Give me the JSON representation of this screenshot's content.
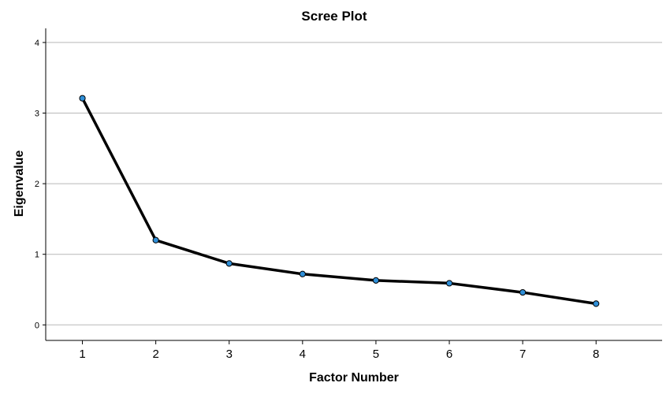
{
  "chart_data": {
    "type": "line",
    "title": "Scree Plot",
    "xlabel": "Factor Number",
    "ylabel": "Eigenvalue",
    "x": [
      1,
      2,
      3,
      4,
      5,
      6,
      7,
      8
    ],
    "x_tick_labels": [
      "1",
      "2",
      "3",
      "4",
      "5",
      "6",
      "7",
      "8"
    ],
    "y_tick_labels": [
      "0",
      "1",
      "2",
      "3",
      "4"
    ],
    "y_ticks": [
      0,
      1,
      2,
      3,
      4
    ],
    "xlim": [
      0.5,
      8.9
    ],
    "ylim": [
      -0.22,
      4.2
    ],
    "grid": true,
    "legend": "none",
    "series": [
      {
        "values": [
          3.21,
          1.2,
          0.87,
          0.72,
          0.63,
          0.59,
          0.46,
          0.3
        ]
      }
    ],
    "colors": {
      "line": "#000000",
      "marker_fill": "#2f8fd8",
      "marker_stroke": "#000000",
      "grid": "#b8b8b8",
      "axis": "#000000"
    }
  }
}
